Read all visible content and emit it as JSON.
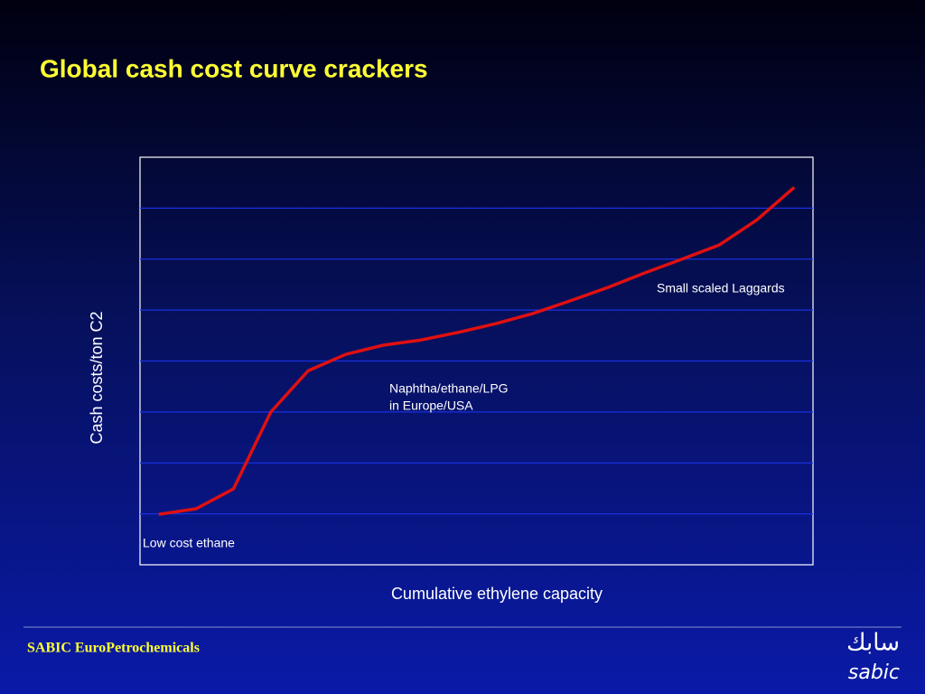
{
  "chart_data": {
    "type": "line",
    "title": "Global cash cost curve crackers",
    "x_label": "Cumulative ethylene capacity",
    "y_label": "Cash costs/ton C2",
    "x": [
      0.5,
      1.5,
      2.5,
      3.5,
      4.5,
      5.5,
      6.5,
      7.5,
      8.5,
      9.5,
      10.5,
      11.5,
      12.5,
      13.5,
      14.5,
      15.5,
      16.5,
      17.5
    ],
    "values": [
      0.99,
      1.1,
      1.49,
      3.0,
      3.81,
      4.13,
      4.31,
      4.41,
      4.56,
      4.73,
      4.93,
      5.18,
      5.44,
      5.73,
      6.0,
      6.28,
      6.77,
      7.41
    ],
    "color": "#e01010",
    "xlim": [
      0,
      18
    ],
    "ylim": [
      0,
      8
    ],
    "yticks": [
      1,
      2,
      3,
      4,
      5,
      6,
      7
    ],
    "grid": true,
    "annotations": [
      {
        "lines": [
          "Low cost ethane"
        ]
      },
      {
        "lines": [
          "Naphtha/ethane/LPG",
          "in Europe/USA"
        ]
      },
      {
        "lines": [
          "Small scaled Laggards"
        ]
      }
    ]
  },
  "footer": {
    "company": "SABIC EuroPetrochemicals",
    "logo_arabic": "سابك",
    "logo_latin": "sabic"
  }
}
